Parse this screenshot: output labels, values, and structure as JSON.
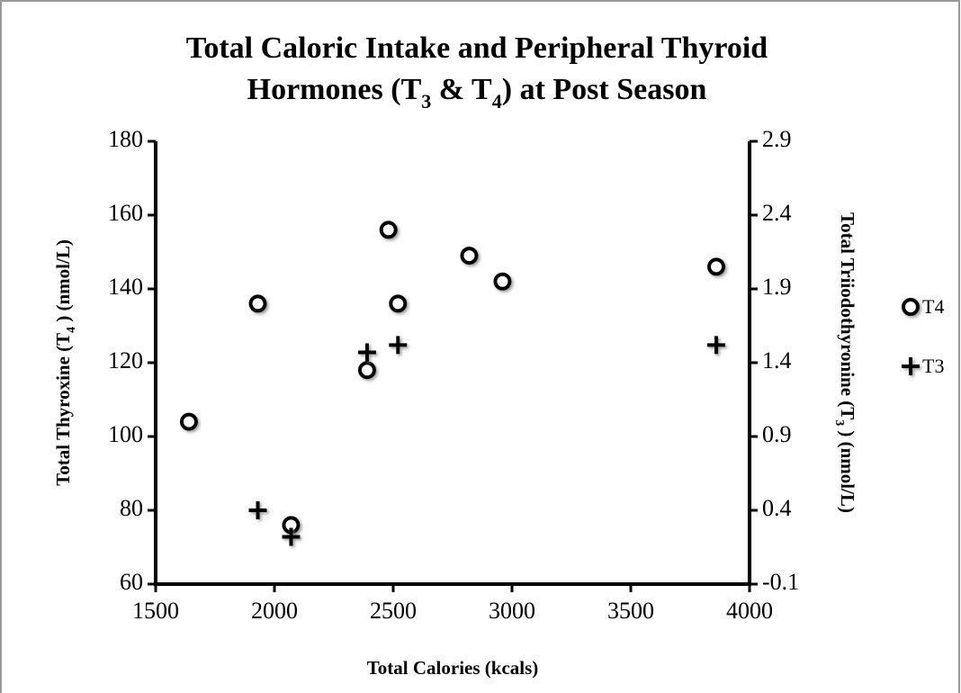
{
  "chart_data": {
    "type": "scatter",
    "title": [
      "Total Caloric Intake and Peripheral Thyroid",
      "Hormones (T3 & T4) at Post Season"
    ],
    "x_label": "Total Calories (kcals)",
    "y_label": "Total Thyroxine (T4 ) (nmol/L)",
    "y2_label": "Total Triiodothyronine  (T3 ) (nmol/L)",
    "xlim": [
      1500,
      4000
    ],
    "xticks": [
      1500,
      2000,
      2500,
      3000,
      3500,
      4000
    ],
    "ylim": [
      60,
      180
    ],
    "yticks": [
      60,
      80,
      100,
      120,
      140,
      160,
      180
    ],
    "y2lim": [
      -0.1,
      2.9
    ],
    "y2ticks": [
      -0.1,
      0.4,
      0.9,
      1.4,
      1.9,
      2.4,
      2.9
    ],
    "series": [
      {
        "name": "T4",
        "marker": "circle",
        "color": "#000000",
        "x": [
          1640,
          1930,
          2070,
          2390,
          2480,
          2520,
          2820,
          2960,
          3860
        ],
        "values": [
          104,
          136,
          76,
          118,
          156,
          136,
          149,
          142,
          146
        ]
      },
      {
        "name": "T3",
        "marker": "plus",
        "color": "#000000",
        "axis": "y2",
        "x": [
          1930,
          2070,
          2390,
          2520,
          3860
        ],
        "values": [
          0.4,
          0.22,
          1.47,
          1.52,
          1.52
        ]
      }
    ],
    "legend": "right"
  }
}
